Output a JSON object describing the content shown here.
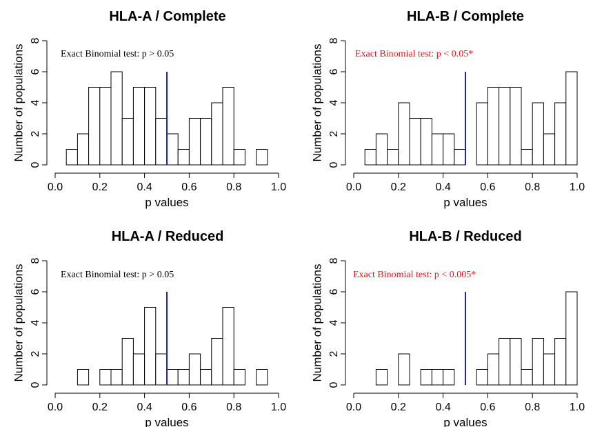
{
  "chart_data": [
    {
      "type": "bar",
      "title": "HLA-A / Complete",
      "xlabel": "p values",
      "ylabel": "Number of populations",
      "xlim": [
        0.0,
        1.0
      ],
      "ylim": [
        0,
        8
      ],
      "xticks": [
        "0.0",
        "0.2",
        "0.4",
        "0.6",
        "0.8",
        "1.0"
      ],
      "yticks": [
        "0",
        "2",
        "4",
        "6",
        "8"
      ],
      "bin_width": 0.05,
      "bin_starts": [
        0.05,
        0.1,
        0.15,
        0.2,
        0.25,
        0.3,
        0.35,
        0.4,
        0.45,
        0.5,
        0.55,
        0.6,
        0.65,
        0.7,
        0.75,
        0.8,
        0.85,
        0.9
      ],
      "values": [
        1,
        2,
        5,
        5,
        6,
        3,
        5,
        5,
        3,
        2,
        1,
        3,
        3,
        4,
        5,
        1,
        0,
        1
      ],
      "reference_line": 0.5,
      "annotation": "Exact Binomial test: p > 0.05",
      "annotation_color": "#000000"
    },
    {
      "type": "bar",
      "title": "HLA-B / Complete",
      "xlabel": "p values",
      "ylabel": "Number of populations",
      "xlim": [
        0.0,
        1.0
      ],
      "ylim": [
        0,
        8
      ],
      "xticks": [
        "0.0",
        "0.2",
        "0.4",
        "0.6",
        "0.8",
        "1.0"
      ],
      "yticks": [
        "0",
        "2",
        "4",
        "6",
        "8"
      ],
      "bin_width": 0.05,
      "bin_starts": [
        0.05,
        0.1,
        0.15,
        0.2,
        0.25,
        0.3,
        0.35,
        0.4,
        0.45,
        0.5,
        0.55,
        0.6,
        0.65,
        0.7,
        0.75,
        0.8,
        0.85,
        0.9,
        0.95
      ],
      "values": [
        1,
        2,
        1,
        4,
        3,
        3,
        2,
        2,
        1,
        0,
        4,
        5,
        5,
        5,
        1,
        4,
        2,
        4,
        6
      ],
      "reference_line": 0.5,
      "annotation": "Exact Binomial test: p < 0.05*",
      "annotation_color": "#e8141e"
    },
    {
      "type": "bar",
      "title": "HLA-A / Reduced",
      "xlabel": "p values",
      "ylabel": "Number of populations",
      "xlim": [
        0.0,
        1.0
      ],
      "ylim": [
        0,
        8
      ],
      "xticks": [
        "0.0",
        "0.2",
        "0.4",
        "0.6",
        "0.8",
        "1.0"
      ],
      "yticks": [
        "0",
        "2",
        "4",
        "6",
        "8"
      ],
      "bin_width": 0.05,
      "bin_starts": [
        0.1,
        0.15,
        0.2,
        0.25,
        0.3,
        0.35,
        0.4,
        0.45,
        0.5,
        0.55,
        0.6,
        0.65,
        0.7,
        0.75,
        0.8,
        0.85,
        0.9
      ],
      "values": [
        1,
        0,
        1,
        1,
        3,
        2,
        5,
        2,
        1,
        1,
        2,
        1,
        3,
        5,
        1,
        0,
        1
      ],
      "reference_line": 0.5,
      "annotation": "Exact Binomial test: p > 0.05",
      "annotation_color": "#000000"
    },
    {
      "type": "bar",
      "title": "HLA-B / Reduced",
      "xlabel": "p values",
      "ylabel": "Number of populations",
      "xlim": [
        0.0,
        1.0
      ],
      "ylim": [
        0,
        8
      ],
      "xticks": [
        "0.0",
        "0.2",
        "0.4",
        "0.6",
        "0.8",
        "1.0"
      ],
      "yticks": [
        "0",
        "2",
        "4",
        "6",
        "8"
      ],
      "bin_width": 0.05,
      "bin_starts": [
        0.1,
        0.15,
        0.2,
        0.25,
        0.3,
        0.35,
        0.4,
        0.45,
        0.5,
        0.55,
        0.6,
        0.65,
        0.7,
        0.75,
        0.8,
        0.85,
        0.9,
        0.95
      ],
      "values": [
        1,
        0,
        2,
        0,
        1,
        1,
        1,
        0,
        0,
        1,
        2,
        3,
        3,
        1,
        3,
        2,
        3,
        6
      ],
      "reference_line": 0.5,
      "annotation": "Exact Binomial test: p < 0.005*",
      "annotation_color": "#e8141e"
    }
  ],
  "colors": {
    "bar_fill": "#ffffff",
    "bar_stroke": "#000000",
    "reference_line": "#1f1fd6",
    "axis": "#000000"
  }
}
